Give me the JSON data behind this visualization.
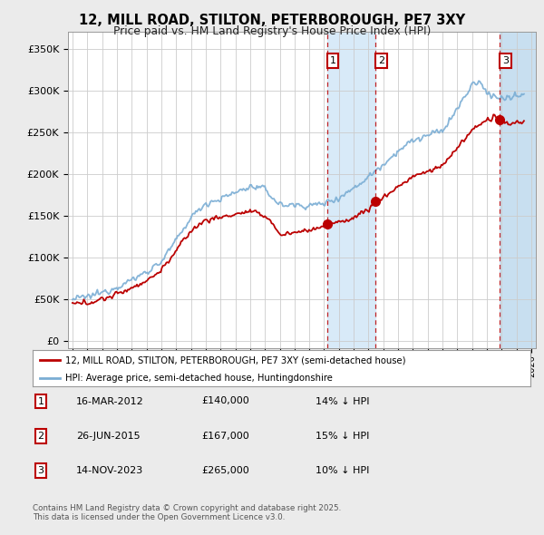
{
  "title": "12, MILL ROAD, STILTON, PETERBOROUGH, PE7 3XY",
  "subtitle": "Price paid vs. HM Land Registry's House Price Index (HPI)",
  "ylabel_ticks": [
    0,
    50000,
    100000,
    150000,
    200000,
    250000,
    300000,
    350000
  ],
  "ylabel_labels": [
    "£0",
    "£50K",
    "£100K",
    "£150K",
    "£200K",
    "£250K",
    "£300K",
    "£350K"
  ],
  "xlim": [
    1994.7,
    2026.3
  ],
  "ylim": [
    -8000,
    370000
  ],
  "sale_dates": [
    2012.21,
    2015.49,
    2023.87
  ],
  "sale_prices": [
    140000,
    167000,
    265000
  ],
  "sale_labels": [
    "1",
    "2",
    "3"
  ],
  "legend_red": "12, MILL ROAD, STILTON, PETERBOROUGH, PE7 3XY (semi-detached house)",
  "legend_blue": "HPI: Average price, semi-detached house, Huntingdonshire",
  "table_rows": [
    [
      "1",
      "16-MAR-2012",
      "£140,000",
      "14% ↓ HPI"
    ],
    [
      "2",
      "26-JUN-2015",
      "£167,000",
      "15% ↓ HPI"
    ],
    [
      "3",
      "14-NOV-2023",
      "£265,000",
      "10% ↓ HPI"
    ]
  ],
  "footer": "Contains HM Land Registry data © Crown copyright and database right 2025.\nThis data is licensed under the Open Government Licence v3.0.",
  "bg_color": "#ebebeb",
  "plot_bg": "#ffffff",
  "red_color": "#bb0000",
  "blue_color": "#7aadd4",
  "shade_color": "#d8eaf8",
  "grid_color": "#cccccc",
  "hatch_color": "#c8dff0"
}
